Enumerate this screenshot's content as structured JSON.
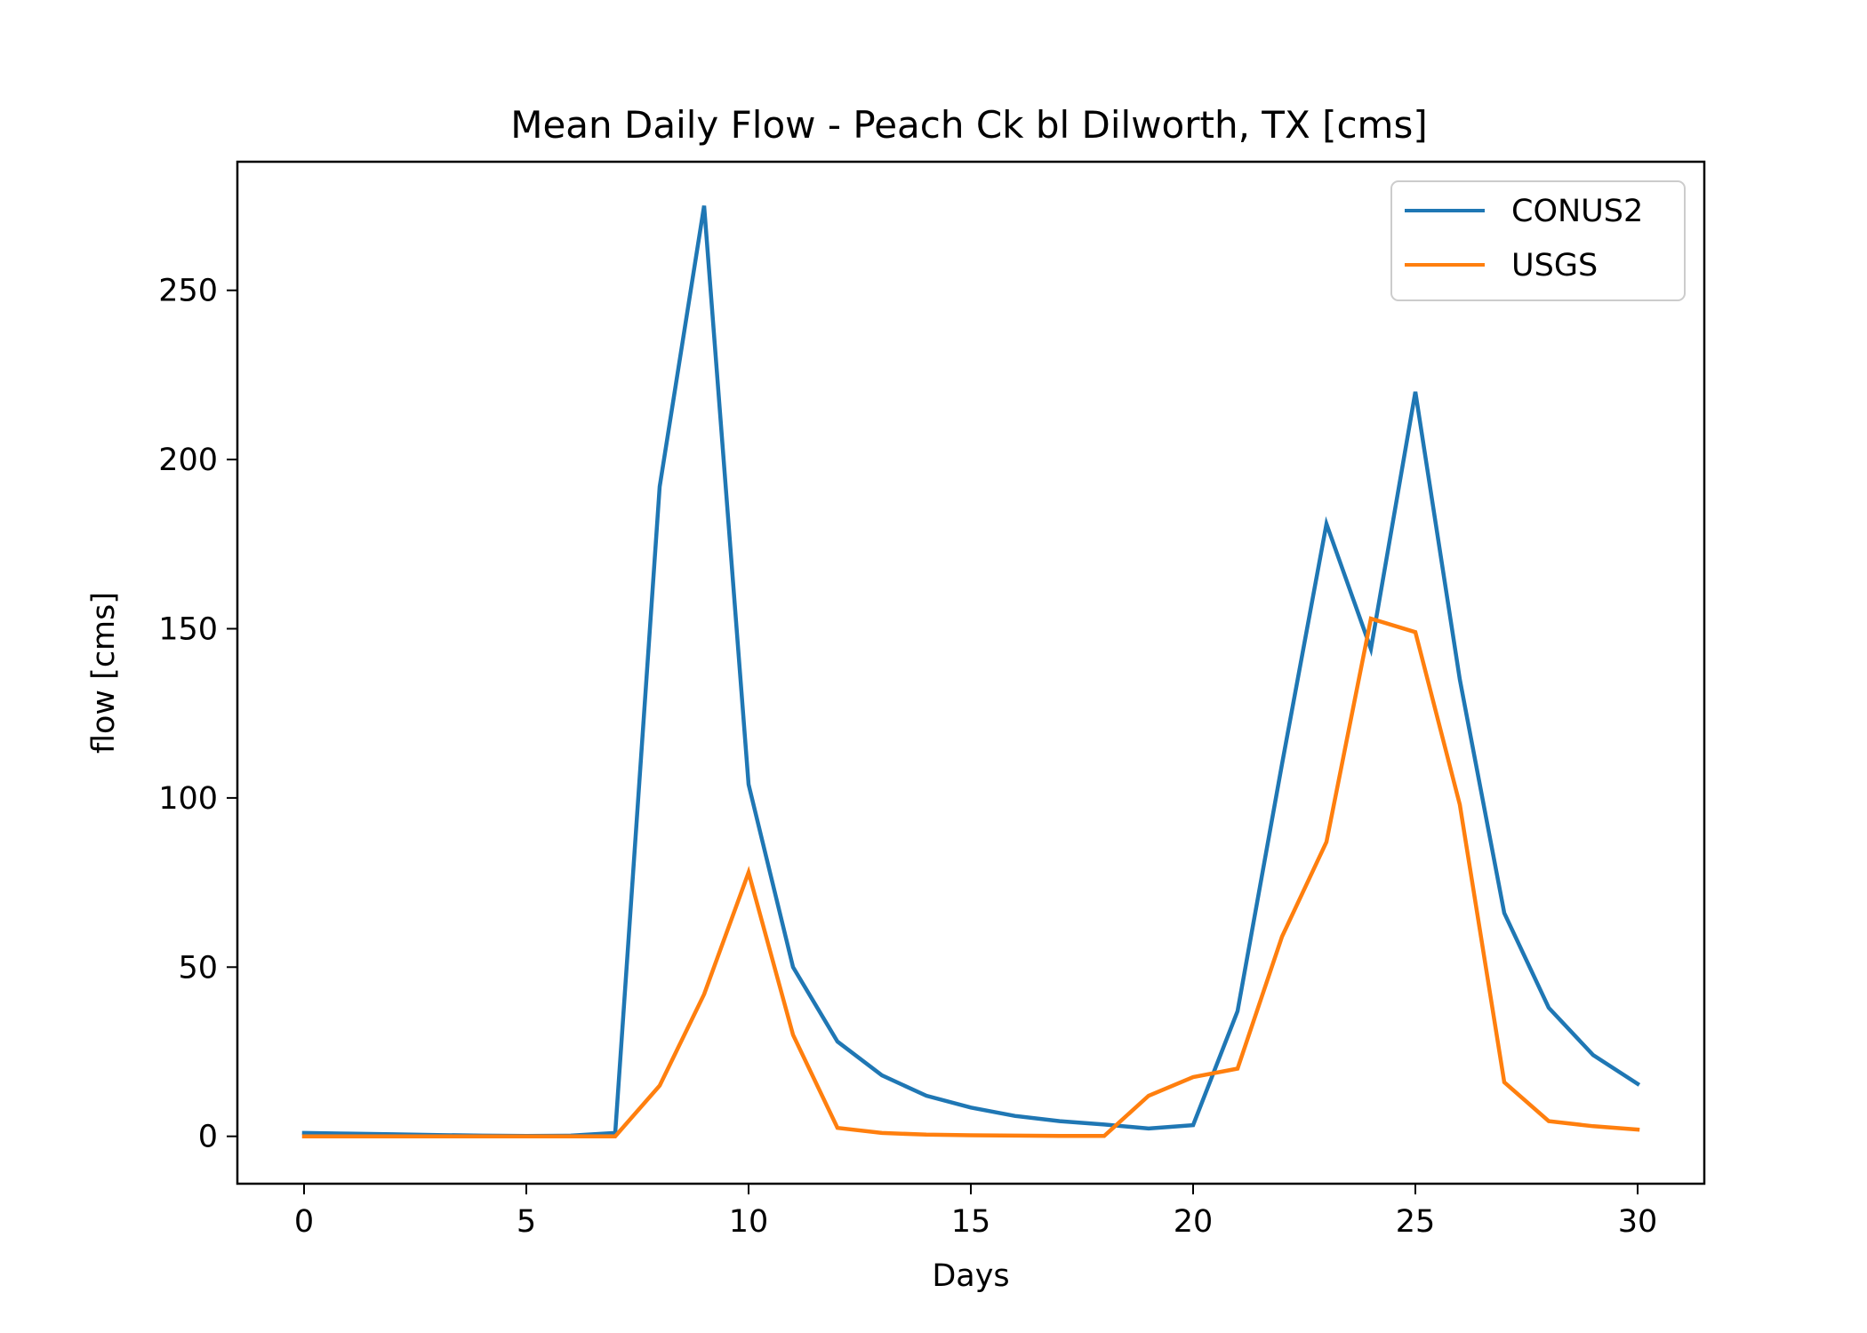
{
  "chart_data": {
    "type": "line",
    "title": "Mean Daily Flow - Peach Ck bl Dilworth, TX [cms]",
    "xlabel": "Days",
    "ylabel": "flow [cms]",
    "xlim": [
      -1.5,
      31.5
    ],
    "ylim": [
      -14,
      288
    ],
    "xticks": [
      0,
      5,
      10,
      15,
      20,
      25,
      30
    ],
    "yticks": [
      0,
      50,
      100,
      150,
      200,
      250
    ],
    "grid": false,
    "legend_position": "top-right",
    "x": [
      0,
      1,
      2,
      3,
      4,
      5,
      6,
      7,
      8,
      9,
      10,
      11,
      12,
      13,
      14,
      15,
      16,
      17,
      18,
      19,
      20,
      21,
      22,
      23,
      24,
      25,
      26,
      27,
      28,
      29,
      30
    ],
    "series": [
      {
        "name": "CONUS2",
        "color": "#1f77b4",
        "values": [
          1.0,
          0.8,
          0.6,
          0.4,
          0.2,
          0.1,
          0.2,
          1.0,
          192,
          275,
          104,
          50,
          28,
          18,
          12,
          8.5,
          6,
          4.5,
          3.5,
          2.3,
          3.3,
          37,
          110,
          181,
          144,
          220,
          135,
          66,
          38,
          24,
          15.5
        ]
      },
      {
        "name": "USGS",
        "color": "#ff7f0e",
        "values": [
          0,
          0,
          0,
          0,
          0,
          0,
          0,
          0,
          15,
          42,
          78,
          30,
          2.5,
          1.0,
          0.5,
          0.3,
          0.2,
          0.1,
          0.1,
          12,
          17.5,
          20,
          59,
          87,
          153,
          149,
          98,
          16,
          4.5,
          3.0,
          2.0
        ]
      }
    ]
  }
}
